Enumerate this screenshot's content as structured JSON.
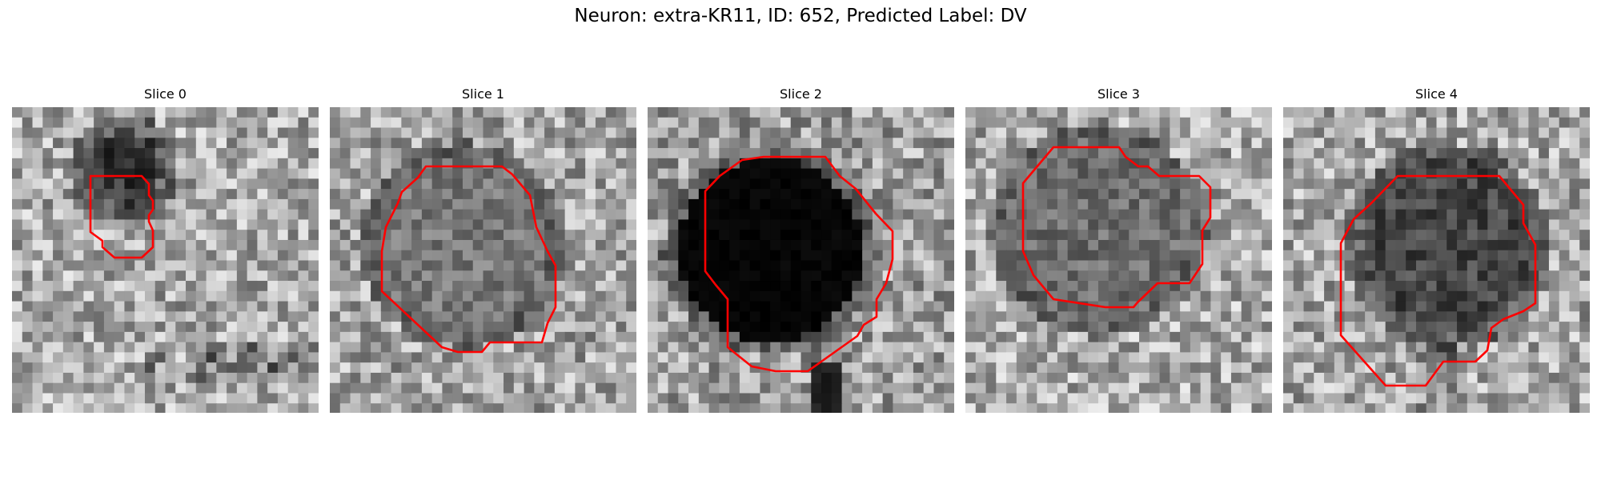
{
  "figure": {
    "title": "Neuron: extra-KR11, ID: 652, Predicted Label: DV",
    "outline_color": "#ff0000"
  },
  "slices": [
    {
      "label": "Slice 0",
      "style": "small-dark"
    },
    {
      "label": "Slice 1",
      "style": "medium-gray"
    },
    {
      "label": "Slice 2",
      "style": "large-black"
    },
    {
      "label": "Slice 3",
      "style": "medium-gray"
    },
    {
      "label": "Slice 4",
      "style": "dark-textured"
    }
  ]
}
